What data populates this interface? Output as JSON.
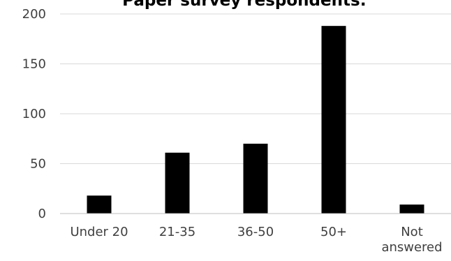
{
  "chart_data": {
    "type": "bar",
    "title": "Paper survey respondents:",
    "xlabel": "",
    "ylabel": "",
    "categories": [
      "Under 20",
      "21-35",
      "36-50",
      "50+",
      "Not answered"
    ],
    "category_label_lines": [
      [
        "Under 20"
      ],
      [
        "21-35"
      ],
      [
        "36-50"
      ],
      [
        "50+"
      ],
      [
        "Not",
        "answered"
      ]
    ],
    "values": [
      18,
      61,
      70,
      188,
      9
    ],
    "ylim": [
      0,
      200
    ],
    "yticks": [
      0,
      50,
      100,
      150,
      200
    ],
    "grid": true,
    "legend": "none",
    "colors": {
      "bar": "#000000",
      "grid": "#d9d9d9",
      "axis": "#bfbfbf",
      "tick_text": "#404040",
      "title": "#000000"
    }
  }
}
